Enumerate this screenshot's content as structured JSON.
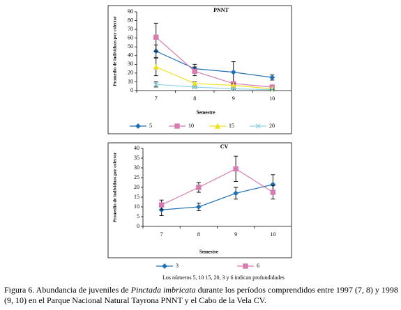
{
  "chart_data": [
    {
      "type": "line",
      "title": "PNNT",
      "x_label": "Semestre",
      "y_label": "Promedio de individuos por colector",
      "categories": [
        "7",
        "8",
        "9",
        "10"
      ],
      "ylim": [
        0,
        90
      ],
      "yticks": [
        0,
        10,
        20,
        30,
        40,
        50,
        60,
        70,
        80,
        90
      ],
      "series": [
        {
          "name": "5",
          "color": "#1f6fb4",
          "marker": "diamond",
          "values": [
            45,
            25,
            21,
            15
          ],
          "errors": [
            7,
            5,
            12,
            3
          ]
        },
        {
          "name": "10",
          "color": "#d77bb0",
          "marker": "square",
          "values": [
            61,
            22,
            8,
            4
          ],
          "errors": [
            16,
            5,
            2,
            1
          ]
        },
        {
          "name": "15",
          "color": "#f0e020",
          "marker": "triangle",
          "values": [
            27,
            8,
            6,
            2
          ],
          "errors": [
            10,
            2,
            2,
            1
          ]
        },
        {
          "name": "20",
          "color": "#8fd3e8",
          "marker": "x",
          "values": [
            7,
            4,
            2,
            1
          ],
          "errors": [
            3,
            1,
            1,
            0.5
          ]
        }
      ]
    },
    {
      "type": "line",
      "title": "CV",
      "x_label": "Semestre",
      "y_label": "Promedio de individuos por colector",
      "categories": [
        "7",
        "8",
        "9",
        "10"
      ],
      "ylim": [
        0,
        40
      ],
      "yticks": [
        0,
        5,
        10,
        15,
        20,
        25,
        30,
        35,
        40
      ],
      "series": [
        {
          "name": "3",
          "color": "#1f6fb4",
          "marker": "diamond",
          "values": [
            8.5,
            10,
            17,
            21.5
          ],
          "errors": [
            3,
            2,
            3,
            5
          ]
        },
        {
          "name": "6",
          "color": "#d77bb0",
          "marker": "square",
          "values": [
            11,
            20,
            29.5,
            17.5
          ],
          "errors": [
            2.5,
            2.5,
            6.5,
            3.5
          ]
        }
      ]
    }
  ],
  "note": "Los números 5, 10 15, 20, 3 y 6 indican profundidades",
  "caption": {
    "before": "Figura 6. Abundancia de juveniles de ",
    "species": "Pinctada imbricata",
    "after": " durante los períodos comprendidos entre 1997 (7, 8) y 1998 (9, 10) en el Parque Nacional Natural Tayrona PNNT y el Cabo de la Vela CV."
  }
}
